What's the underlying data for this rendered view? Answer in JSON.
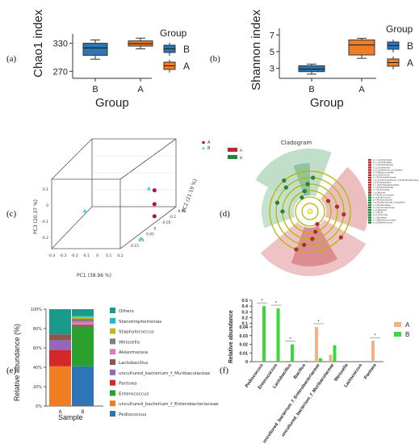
{
  "panels": {
    "a": "(a)",
    "b": "(b)",
    "c": "(c)",
    "d": "(d)",
    "e": "(e)",
    "f": "(f)"
  },
  "colors": {
    "A": "#f07d22",
    "B": "#2e75b6",
    "lefse_A": "#c0272d",
    "lefse_B": "#1b8a3a",
    "f_A": "#f4b183",
    "f_B": "#3ad83a"
  },
  "chart_data": [
    {
      "id": "a",
      "type": "box",
      "title": "",
      "ylabel": "Chao1 index",
      "xlabel": "Group",
      "ylim": [
        255,
        350
      ],
      "yticks": [
        270,
        330
      ],
      "categories": [
        "B",
        "A"
      ],
      "boxes": [
        {
          "group": "B",
          "whisker_low": 296,
          "q1": 304,
          "median": 320,
          "q3": 330,
          "whisker_high": 337
        },
        {
          "group": "A",
          "whisker_low": 318,
          "q1": 324,
          "median": 329,
          "q3": 335,
          "whisker_high": 341
        }
      ],
      "legend": {
        "title": "Group",
        "items": [
          "B",
          "A"
        ],
        "placement": "right"
      }
    },
    {
      "id": "b",
      "type": "box",
      "title": "",
      "ylabel": "Shannon index",
      "xlabel": "Group",
      "ylim": [
        1.8,
        7.8
      ],
      "yticks": [
        3,
        5,
        7
      ],
      "categories": [
        "B",
        "A"
      ],
      "boxes": [
        {
          "group": "B",
          "whisker_low": 2.3,
          "q1": 2.6,
          "median": 2.9,
          "q3": 3.3,
          "whisker_high": 3.5
        },
        {
          "group": "A",
          "whisker_low": 4.2,
          "q1": 4.6,
          "median": 5.8,
          "q3": 6.4,
          "whisker_high": 6.6
        }
      ],
      "legend": {
        "title": "Group",
        "items": [
          "B",
          "A"
        ],
        "placement": "right"
      }
    },
    {
      "id": "c",
      "type": "scatter",
      "title": "",
      "xlabel": "PC1 (38.96 %)",
      "ylabel": "PC3 (20.37 %)",
      "zlabel": "PC2 (21.19 %)",
      "x_ticks": [
        "-0.4",
        "-0.3",
        "-0.2",
        "-0.1",
        "0",
        "0.1",
        "0.2"
      ],
      "y_ticks": [
        "0.1",
        "0",
        "-0.1",
        "-0.2"
      ],
      "z_ticks": [
        "0.15",
        "0.1",
        "0.05",
        "0",
        "-0.05",
        "-0.1",
        "-0.15"
      ],
      "legend": {
        "items": [
          "A",
          "B"
        ],
        "placement": "top-right"
      },
      "series": [
        {
          "name": "A",
          "points": [
            [
              0.12,
              0.1
            ],
            [
              0.12,
              0.02
            ],
            [
              0.12,
              -0.05
            ]
          ]
        },
        {
          "name": "B",
          "points": [
            [
              -0.25,
              -0.02
            ],
            [
              0.09,
              0.11
            ],
            [
              0.05,
              -0.18
            ]
          ]
        }
      ]
    },
    {
      "id": "d",
      "type": "cladogram",
      "title": "Cladogram",
      "legend": [
        "A",
        "B"
      ],
      "feature_labels_A": [
        "a: c_Lactobacillales",
        "b: o_Lactobacillales",
        "c: f_Lactobacillaceae",
        "d: g_Lactobacillus",
        "e: s_Lactobacillus_unclassified",
        "f: f_Streptococcaceae",
        "g: g_Lactococcus",
        "h: f_Enterobacteriaceae",
        "i: g_unculture_bacterium_f_Enterobacteriaceae",
        "j: p_Proteobacteria",
        "k: c_Gammaproteobacteria",
        "l: o_Enterobacterales",
        "m: f_Erwiniaceae",
        "n: g_Pantoea"
      ],
      "feature_labels_B": [
        "o: f_Enterococcaceae",
        "p: g_Enterococcus",
        "q: f_Muribaculaceae",
        "r: g_Muribaculaceae_unclassified",
        "s: o_Bacteroidales",
        "t: f_Leuconostocaceae",
        "u: g_Weissella",
        "v: c_Bacilli",
        "w: p_Firmicutes",
        "x: o_Bacillales",
        "y: f_Staphylococcaceae",
        "z: g_Staphylococcus"
      ]
    },
    {
      "id": "e",
      "type": "stacked_bar",
      "title": "",
      "ylabel": "Relative abundance (%)",
      "xlabel": "Sample",
      "ylim": [
        0,
        100
      ],
      "yticks": [
        "0%",
        "20%",
        "40%",
        "60%",
        "80%",
        "100%"
      ],
      "categories": [
        "A",
        "B"
      ],
      "series": [
        {
          "name": "Pediococcus",
          "values": [
            0,
            41
          ]
        },
        {
          "name": "uncultured_bacterium_f_Enterobacteriaceae",
          "values": [
            41,
            0
          ]
        },
        {
          "name": "Enterococcus",
          "values": [
            0,
            41
          ]
        },
        {
          "name": "Pantoea",
          "values": [
            17,
            0
          ]
        },
        {
          "name": "uncultured_bacterium_f_Muribaculaceae",
          "values": [
            10,
            0
          ]
        },
        {
          "name": "Lactobacillus",
          "values": [
            6,
            2
          ]
        },
        {
          "name": "Akkermansia",
          "values": [
            0,
            3
          ]
        },
        {
          "name": "Weissella",
          "values": [
            0,
            3
          ]
        },
        {
          "name": "Staphylococcus",
          "values": [
            0,
            2
          ]
        },
        {
          "name": "Stenotrophomonas",
          "values": [
            0,
            1
          ]
        },
        {
          "name": "Others",
          "values": [
            26,
            7
          ]
        }
      ],
      "colors": [
        "#2e75b6",
        "#f07d22",
        "#2ca02c",
        "#d62728",
        "#9467bd",
        "#8c564b",
        "#e377c2",
        "#7f7f7f",
        "#bcbd22",
        "#17becf",
        "#1a9a8a"
      ],
      "legend_order": [
        "Others",
        "Stenotrophomonas",
        "Staphylococcus",
        "Weissella",
        "Akkermansia",
        "Lactobacillus",
        "uncultured_bacterium_f_Muribaculaceae",
        "Pantoea",
        "Enterococcus",
        "uncultured_bacterium_f_Enterobacteriaceae",
        "Pediococcus"
      ]
    },
    {
      "id": "f",
      "type": "bar",
      "title": "",
      "ylabel": "Relative abundance",
      "ylim": [
        0,
        0.5
      ],
      "yticks": [
        "0",
        "0.01",
        "0.02",
        "0.03",
        "0.04",
        "0.1",
        "0.2",
        "0.3",
        "0.4",
        "0.5"
      ],
      "categories": [
        "Pediococcus",
        "Enterococcus",
        "Lactobacillus",
        "Bacillus",
        "uncultured_bacterium_f_Enterobacteriaceae",
        "uncultured_bacterium_f_Muribaculaceae",
        "Weissella",
        "Lactococcus",
        "Pantoea"
      ],
      "series": [
        {
          "name": "A",
          "values": [
            0,
            0,
            0,
            0,
            0.04,
            0.008,
            0,
            0,
            0.024
          ]
        },
        {
          "name": "B",
          "values": [
            0.4,
            0.36,
            0.02,
            0.001,
            0.004,
            0.019,
            0,
            0,
            0
          ]
        }
      ],
      "significance": [
        "*",
        "*",
        "*",
        "",
        "*",
        "",
        "",
        "",
        "*"
      ],
      "legend": {
        "items": [
          "A",
          "B"
        ],
        "placement": "top-right"
      }
    }
  ]
}
